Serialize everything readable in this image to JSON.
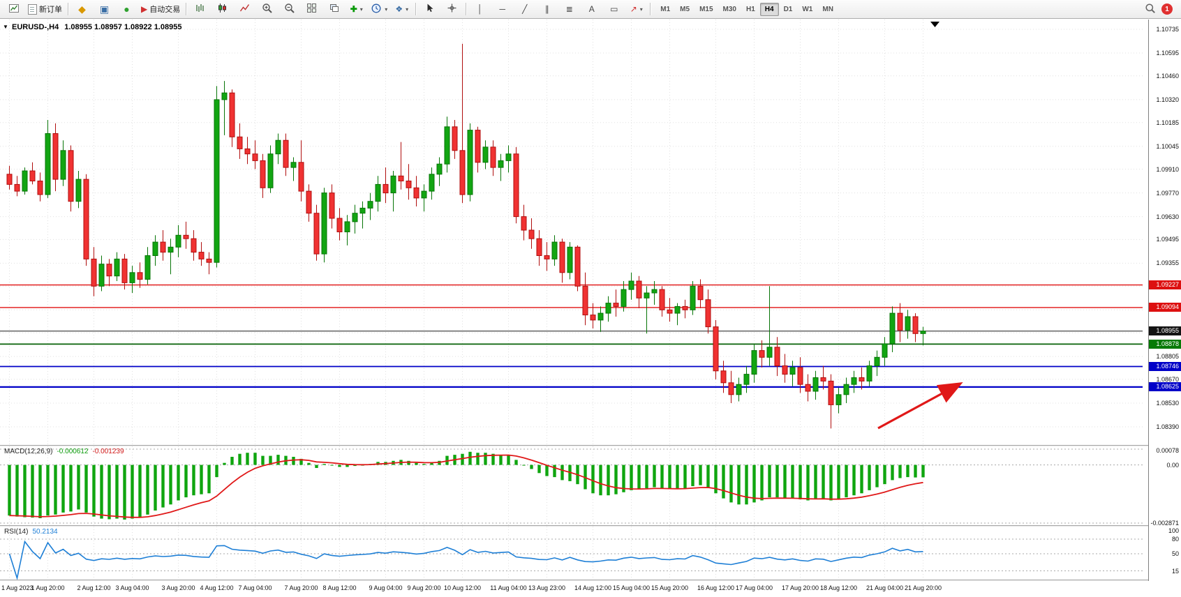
{
  "toolbar": {
    "new_order": "新订单",
    "auto_trading": "自动交易",
    "timeframes": [
      "M1",
      "M5",
      "M15",
      "M30",
      "H1",
      "H4",
      "D1",
      "W1",
      "MN"
    ],
    "active_timeframe": "H4",
    "notification_count": "1",
    "icons": {
      "sound_alert": "◆",
      "data_window": "▣",
      "support": "●",
      "auto_trading_play": "▶",
      "indicators_add": "✚",
      "templates": "❖",
      "vertical_line": "│",
      "horizontal_line": "─",
      "trendline": "╱",
      "channel": "∥",
      "fibonacci": "≣",
      "text": "A",
      "text_label": "▭",
      "arrows": "↗",
      "caret": "▾",
      "collapse_triangle": "▼",
      "shift_triangle": "▼"
    }
  },
  "chart": {
    "header": {
      "symbol": "EURUSD-,H4",
      "quotes": "1.08955 1.08957 1.08922 1.08955"
    },
    "grid_prices": [
      1.10735,
      1.10595,
      1.1046,
      1.1032,
      1.10185,
      1.10045,
      1.0991,
      1.0977,
      1.0963,
      1.09495,
      1.09355,
      1.0922,
      1.0908,
      1.08945,
      1.08805,
      1.0867,
      1.0853,
      1.0839
    ],
    "axis_ticks": [
      1.10735,
      1.10595,
      1.1046,
      1.1032,
      1.10185,
      1.10045,
      1.0991,
      1.0977,
      1.0963,
      1.09495,
      1.09355,
      1.08805,
      1.0867,
      1.0853,
      1.0839
    ],
    "price_badges": [
      {
        "price": 1.09227,
        "label": "1.09227",
        "bg": "#dd1010"
      },
      {
        "price": 1.09094,
        "label": "1.09094",
        "bg": "#dd1010"
      },
      {
        "price": 1.08955,
        "label": "1.08955",
        "bg": "#141414"
      },
      {
        "price": 1.08878,
        "label": "1.08878",
        "bg": "#067a06"
      },
      {
        "price": 1.08746,
        "label": "1.08746",
        "bg": "#0000c8"
      },
      {
        "price": 1.08625,
        "label": "1.08625",
        "bg": "#0000c8"
      }
    ],
    "hlines": [
      {
        "price": 1.09227,
        "color": "#e01010",
        "width": 1.4
      },
      {
        "price": 1.09094,
        "color": "#e01010",
        "width": 1.4
      },
      {
        "price": 1.08955,
        "color": "#1c1c1c",
        "width": 1
      },
      {
        "price": 1.08878,
        "color": "#066006",
        "width": 1.7
      },
      {
        "price": 1.08746,
        "color": "#0000c8",
        "width": 1.7
      },
      {
        "price": 1.08625,
        "color": "#0000c8",
        "width": 2.2
      }
    ],
    "arrow": {
      "from": [
        1258,
        586
      ],
      "to": [
        1374,
        523
      ],
      "color": "#e01818"
    },
    "time_labels": [
      "1 Aug 2023",
      "1 Aug 20:00",
      "2 Aug 12:00",
      "3 Aug 04:00",
      "3 Aug 20:00",
      "4 Aug 12:00",
      "7 Aug 04:00",
      "7 Aug 20:00",
      "8 Aug 12:00",
      "9 Aug 04:00",
      "9 Aug 20:00",
      "10 Aug 12:00",
      "11 Aug 04:00",
      "13 Aug 23:00",
      "14 Aug 12:00",
      "15 Aug 04:00",
      "15 Aug 20:00",
      "16 Aug 12:00",
      "17 Aug 04:00",
      "17 Aug 20:00",
      "18 Aug 12:00",
      "21 Aug 04:00",
      "21 Aug 20:00"
    ],
    "time_label_indices": [
      0,
      5,
      11,
      16,
      22,
      27,
      32,
      38,
      43,
      49,
      54,
      59,
      65,
      70,
      76,
      81,
      86,
      92,
      97,
      103,
      108,
      114,
      119
    ]
  },
  "macd": {
    "label": "MACD(12,26,9)",
    "value_main": "-0.000612",
    "value_signal": "-0.001239",
    "axis": [
      {
        "label": "0.00078",
        "value": 0.00078
      },
      {
        "label": "0.00",
        "value": 0
      },
      {
        "label": "-0.002871",
        "value": -0.002871
      }
    ]
  },
  "rsi": {
    "label": "RSI(14)",
    "value": "50.2134",
    "axis": [
      {
        "label": "100",
        "value": 100
      },
      {
        "label": "80",
        "value": 80
      },
      {
        "label": "50",
        "value": 50
      },
      {
        "label": "15",
        "value": 15
      }
    ],
    "levels": [
      80,
      50,
      15
    ]
  },
  "chart_data": {
    "type": "candlestick",
    "symbol": "EURUSD-",
    "timeframe": "H4",
    "ylim": [
      1.0839,
      1.10735
    ],
    "macd_range": [
      -0.002871,
      0.00078
    ],
    "colors": {
      "up": "#12a512",
      "up_border": "#077507",
      "down": "#f03232",
      "down_border": "#b00e0e",
      "macd": "#0fa50f",
      "signal": "#e01818",
      "rsi": "#1e7fd6",
      "grid": "#e0e0e0",
      "level": "#a8a8a8"
    },
    "indicators": {
      "macd": {
        "fast": 12,
        "slow": 26,
        "signal": 9
      },
      "rsi": {
        "period": 14
      }
    },
    "candles": [
      [
        1.0988,
        1.0993,
        1.0979,
        1.0982
      ],
      [
        1.0982,
        1.0987,
        1.0975,
        1.0978
      ],
      [
        1.0978,
        1.0992,
        1.0976,
        1.099
      ],
      [
        1.099,
        1.0995,
        1.0982,
        1.0984
      ],
      [
        1.0984,
        1.0989,
        1.0972,
        1.0976
      ],
      [
        1.0976,
        1.102,
        1.0974,
        1.1012
      ],
      [
        1.1012,
        1.1018,
        1.0978,
        1.0985
      ],
      [
        1.0985,
        1.1008,
        1.0981,
        1.1002
      ],
      [
        1.1002,
        1.1005,
        1.0966,
        1.0972
      ],
      [
        1.0972,
        1.099,
        1.0968,
        1.0985
      ],
      [
        1.0985,
        1.0988,
        1.0934,
        1.0938
      ],
      [
        1.0938,
        1.0945,
        1.0916,
        1.0922
      ],
      [
        1.0922,
        1.094,
        1.0919,
        1.0935
      ],
      [
        1.0935,
        1.0938,
        1.0922,
        1.0928
      ],
      [
        1.0928,
        1.0942,
        1.0925,
        1.0938
      ],
      [
        1.0938,
        1.0941,
        1.092,
        1.0924
      ],
      [
        1.0924,
        1.0934,
        1.0918,
        1.093
      ],
      [
        1.093,
        1.0936,
        1.0921,
        1.0926
      ],
      [
        1.0926,
        1.0945,
        1.0923,
        1.094
      ],
      [
        1.094,
        1.0952,
        1.0934,
        1.0948
      ],
      [
        1.0948,
        1.0955,
        1.0937,
        1.0942
      ],
      [
        1.0942,
        1.095,
        1.0929,
        1.0945
      ],
      [
        1.0945,
        1.0958,
        1.0939,
        1.0952
      ],
      [
        1.0952,
        1.096,
        1.0944,
        1.095
      ],
      [
        1.095,
        1.0955,
        1.0937,
        1.0942
      ],
      [
        1.0942,
        1.0948,
        1.0934,
        1.0938
      ],
      [
        1.0938,
        1.0942,
        1.0929,
        1.0936
      ],
      [
        1.0936,
        1.104,
        1.0933,
        1.1032
      ],
      [
        1.1032,
        1.1043,
        1.1011,
        1.1036
      ],
      [
        1.1036,
        1.1038,
        1.1004,
        1.101
      ],
      [
        1.101,
        1.1018,
        1.0997,
        1.1003
      ],
      [
        1.1003,
        1.101,
        1.0994,
        1.1
      ],
      [
        1.1,
        1.1008,
        1.0991,
        1.0996
      ],
      [
        1.0996,
        1.1,
        1.0974,
        1.098
      ],
      [
        1.098,
        1.1005,
        1.0977,
        1.1
      ],
      [
        1.1,
        1.1012,
        1.0994,
        1.1008
      ],
      [
        1.1008,
        1.1012,
        1.0987,
        1.0992
      ],
      [
        1.0992,
        1.0998,
        1.0984,
        1.0995
      ],
      [
        1.0995,
        1.1008,
        1.0972,
        1.0978
      ],
      [
        1.0978,
        1.0982,
        1.096,
        1.0965
      ],
      [
        1.0965,
        1.097,
        1.0937,
        1.0941
      ],
      [
        1.0941,
        1.098,
        1.0936,
        1.0977
      ],
      [
        1.0977,
        1.0982,
        1.0956,
        1.0962
      ],
      [
        1.0962,
        1.0968,
        1.0949,
        1.0954
      ],
      [
        1.0954,
        1.0964,
        1.0946,
        1.096
      ],
      [
        1.096,
        1.097,
        1.0953,
        1.0965
      ],
      [
        1.0965,
        1.0972,
        1.0956,
        1.0968
      ],
      [
        1.0968,
        1.0977,
        1.0961,
        1.0972
      ],
      [
        1.0972,
        1.0987,
        1.0966,
        1.0982
      ],
      [
        1.0982,
        1.0992,
        1.0971,
        1.0977
      ],
      [
        1.0977,
        1.099,
        1.0966,
        1.0987
      ],
      [
        1.0987,
        1.1007,
        1.0979,
        1.0984
      ],
      [
        1.0984,
        1.0994,
        1.0973,
        1.098
      ],
      [
        1.098,
        1.0987,
        1.0969,
        1.0974
      ],
      [
        1.0974,
        1.0982,
        1.0966,
        1.0978
      ],
      [
        1.0978,
        1.0992,
        1.0973,
        1.0988
      ],
      [
        1.0988,
        1.0998,
        1.0981,
        1.0994
      ],
      [
        1.0994,
        1.1022,
        1.0989,
        1.1016
      ],
      [
        1.1016,
        1.102,
        1.0997,
        1.1002
      ],
      [
        1.1002,
        1.1065,
        1.0971,
        1.0976
      ],
      [
        1.0976,
        1.1018,
        1.0972,
        1.1014
      ],
      [
        1.1014,
        1.1016,
        1.0989,
        1.0995
      ],
      [
        1.0995,
        1.1008,
        1.0991,
        1.1004
      ],
      [
        1.1004,
        1.1008,
        1.0987,
        1.0992
      ],
      [
        1.0992,
        1.1,
        1.0984,
        1.0996
      ],
      [
        1.0996,
        1.1005,
        1.0989,
        1.1
      ],
      [
        1.1,
        1.1004,
        1.0959,
        1.0963
      ],
      [
        1.0963,
        1.097,
        1.0949,
        1.0955
      ],
      [
        1.0955,
        1.0962,
        1.0944,
        1.095
      ],
      [
        1.095,
        1.0955,
        1.0934,
        1.094
      ],
      [
        1.094,
        1.0948,
        1.0931,
        1.0938
      ],
      [
        1.0938,
        1.0952,
        1.0934,
        1.0948
      ],
      [
        1.0948,
        1.095,
        1.0924,
        1.093
      ],
      [
        1.093,
        1.0948,
        1.0926,
        1.0945
      ],
      [
        1.0945,
        1.0946,
        1.0919,
        1.0922
      ],
      [
        1.0922,
        1.093,
        1.0899,
        1.0905
      ],
      [
        1.0905,
        1.0912,
        1.0897,
        1.0902
      ],
      [
        1.0902,
        1.091,
        1.0895,
        1.0906
      ],
      [
        1.0906,
        1.0916,
        1.0901,
        1.0912
      ],
      [
        1.0912,
        1.092,
        1.0904,
        1.091
      ],
      [
        1.091,
        1.0925,
        1.0907,
        1.092
      ],
      [
        1.092,
        1.093,
        1.0914,
        1.0925
      ],
      [
        1.0925,
        1.0928,
        1.0909,
        1.0915
      ],
      [
        1.0915,
        1.0922,
        1.0894,
        1.0918
      ],
      [
        1.0918,
        1.0925,
        1.0911,
        1.092
      ],
      [
        1.092,
        1.0922,
        1.0904,
        1.0908
      ],
      [
        1.0908,
        1.0915,
        1.0901,
        1.0906
      ],
      [
        1.0906,
        1.0912,
        1.0899,
        1.091
      ],
      [
        1.091,
        1.0914,
        1.0903,
        1.0908
      ],
      [
        1.0908,
        1.0925,
        1.0905,
        1.0922
      ],
      [
        1.0922,
        1.0926,
        1.0909,
        1.0914
      ],
      [
        1.0914,
        1.092,
        1.0894,
        1.0898
      ],
      [
        1.0898,
        1.0902,
        1.0867,
        1.0872
      ],
      [
        1.0872,
        1.0878,
        1.0859,
        1.0865
      ],
      [
        1.0865,
        1.0872,
        1.0853,
        1.0858
      ],
      [
        1.0858,
        1.0868,
        1.0854,
        1.0864
      ],
      [
        1.0864,
        1.0875,
        1.0859,
        1.087
      ],
      [
        1.087,
        1.0888,
        1.0865,
        1.0884
      ],
      [
        1.0884,
        1.089,
        1.0874,
        1.088
      ],
      [
        1.088,
        1.0922,
        1.0875,
        1.0886
      ],
      [
        1.0886,
        1.0892,
        1.0869,
        1.0875
      ],
      [
        1.0875,
        1.0882,
        1.0865,
        1.087
      ],
      [
        1.087,
        1.0878,
        1.0863,
        1.0874
      ],
      [
        1.0874,
        1.088,
        1.0859,
        1.0864
      ],
      [
        1.0864,
        1.087,
        1.0854,
        1.086
      ],
      [
        1.086,
        1.0872,
        1.0855,
        1.0868
      ],
      [
        1.0868,
        1.0875,
        1.0861,
        1.0866
      ],
      [
        1.0866,
        1.087,
        1.0838,
        1.0852
      ],
      [
        1.0852,
        1.0862,
        1.0847,
        1.0858
      ],
      [
        1.0858,
        1.0868,
        1.0853,
        1.0864
      ],
      [
        1.0864,
        1.0872,
        1.0859,
        1.0868
      ],
      [
        1.0868,
        1.0874,
        1.0861,
        1.0866
      ],
      [
        1.0866,
        1.0878,
        1.0863,
        1.0875
      ],
      [
        1.0875,
        1.0884,
        1.0869,
        1.088
      ],
      [
        1.088,
        1.0892,
        1.0875,
        1.0888
      ],
      [
        1.0888,
        1.091,
        1.0883,
        1.0906
      ],
      [
        1.0906,
        1.0912,
        1.0889,
        1.0896
      ],
      [
        1.0896,
        1.0908,
        1.0891,
        1.0904
      ],
      [
        1.0904,
        1.0906,
        1.0889,
        1.0894
      ],
      [
        1.0894,
        1.0898,
        1.0887,
        1.08955
      ]
    ],
    "macd_histogram_e4": [
      -25.0,
      -25.5,
      -25.8,
      -26.0,
      -26.3,
      -25.0,
      -24.5,
      -23.5,
      -23.0,
      -22.0,
      -23.5,
      -25.5,
      -26.5,
      -26.8,
      -26.5,
      -27.0,
      -26.5,
      -26.0,
      -24.5,
      -22.5,
      -21.0,
      -19.5,
      -17.5,
      -16.0,
      -15.0,
      -14.5,
      -14.0,
      -6.0,
      1.0,
      4.0,
      5.5,
      6.0,
      6.0,
      4.5,
      4.5,
      5.0,
      4.5,
      4.0,
      3.0,
      1.0,
      -1.5,
      0.5,
      0.0,
      -1.0,
      -1.0,
      -0.5,
      0.0,
      0.5,
      1.5,
      1.5,
      2.0,
      2.5,
      2.0,
      1.0,
      0.5,
      1.0,
      2.0,
      4.5,
      5.0,
      5.5,
      6.5,
      6.0,
      6.0,
      5.5,
      5.0,
      5.0,
      2.5,
      0.0,
      -2.0,
      -4.0,
      -5.5,
      -6.0,
      -7.5,
      -8.0,
      -9.5,
      -12.0,
      -14.0,
      -15.0,
      -15.0,
      -14.5,
      -13.5,
      -12.5,
      -12.0,
      -11.5,
      -11.0,
      -11.5,
      -12.0,
      -12.0,
      -11.5,
      -10.5,
      -10.0,
      -11.0,
      -14.0,
      -16.5,
      -18.5,
      -19.5,
      -19.5,
      -18.5,
      -17.5,
      -16.0,
      -16.0,
      -16.5,
      -16.5,
      -17.0,
      -17.5,
      -17.0,
      -16.5,
      -17.5,
      -17.0,
      -16.0,
      -15.0,
      -14.0,
      -12.5,
      -11.0,
      -9.5,
      -7.5,
      -6.5,
      -6.0,
      -6.2,
      -6.12
    ]
  }
}
